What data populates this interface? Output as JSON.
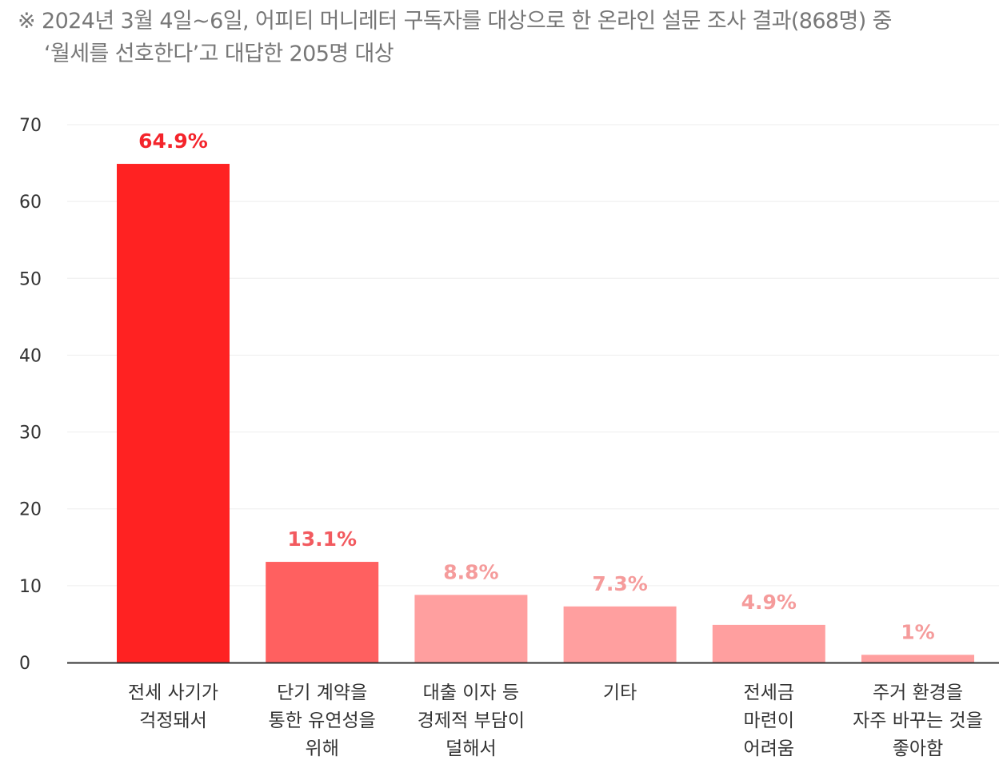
{
  "note": {
    "line1": "※ 2024년 3월 4일~6일, 어피티 머니레터 구독자를 대상으로 한 온라인 설문 조사 결과(868명) 중",
    "line2": "‘월세를 선호한다’고 대답한 205명 대상"
  },
  "chart_data": {
    "type": "bar",
    "categories": [
      [
        "전세 사기가",
        "걱정돼서"
      ],
      [
        "단기 계약을",
        "통한 유연성을",
        "위해"
      ],
      [
        "대출 이자 등",
        "경제적 부담이",
        "덜해서"
      ],
      [
        "기타"
      ],
      [
        "전세금",
        "마련이",
        "어려움"
      ],
      [
        "주거 환경을",
        "자주 바꾸는 것을",
        "좋아함"
      ]
    ],
    "values": [
      64.9,
      13.1,
      8.8,
      7.3,
      4.9,
      1
    ],
    "value_labels": [
      "64.9%",
      "13.1%",
      "8.8%",
      "7.3%",
      "4.9%",
      "1%"
    ],
    "yticks": [
      0,
      10,
      20,
      30,
      40,
      50,
      60,
      70
    ],
    "ylim": [
      0,
      70
    ],
    "grid": true,
    "legend": "none",
    "bar_colors": [
      "#ff2222",
      "#ff6060",
      "#ff9f9f",
      "#ff9f9f",
      "#ff9f9f",
      "#ff9f9f"
    ],
    "label_colors": [
      "#f4242b",
      "#f25a5f",
      "#f59b9b",
      "#f59b9b",
      "#f59b9b",
      "#f59b9b"
    ],
    "gridline_color": "#eeeeee",
    "axis_color": "#333333"
  }
}
